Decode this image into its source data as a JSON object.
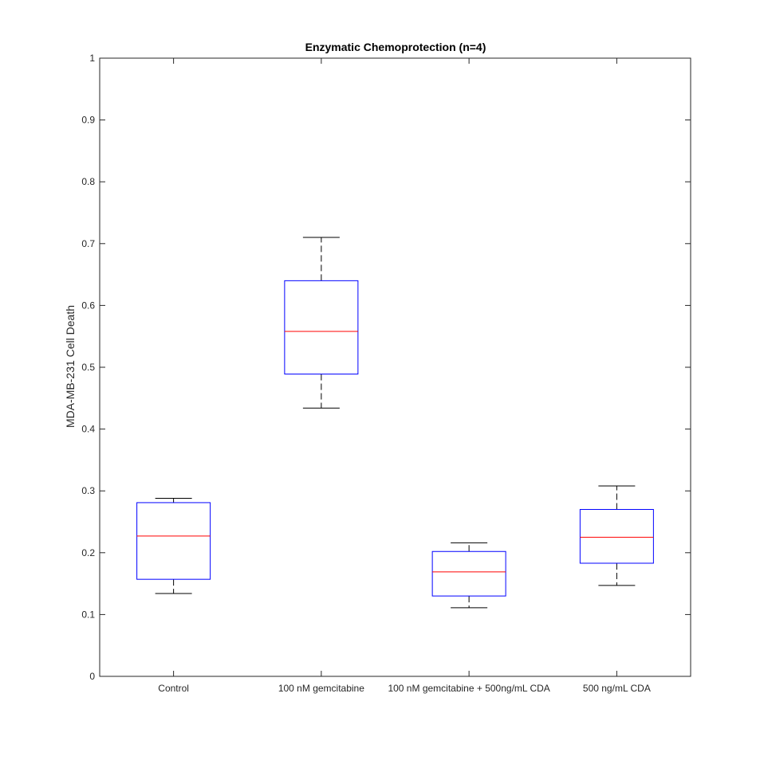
{
  "chart_data": {
    "type": "boxplot",
    "title": "Enzymatic Chemoprotection (n=4)",
    "xlabel": "",
    "ylabel": "MDA-MB-231 Cell Death",
    "ylim": [
      0,
      1
    ],
    "yticks": [
      "0",
      "0.1",
      "0.2",
      "0.3",
      "0.4",
      "0.5",
      "0.6",
      "0.7",
      "0.8",
      "0.9",
      "1"
    ],
    "grid": false,
    "categories": [
      "Control",
      "100 nM gemcitabine",
      "100 nM gemcitabine + 500ng/mL CDA",
      "500 ng/mL CDA"
    ],
    "boxes": [
      {
        "category": "Control",
        "whisker_low": 0.134,
        "q1": 0.157,
        "median": 0.227,
        "q3": 0.281,
        "whisker_high": 0.288
      },
      {
        "category": "100 nM gemcitabine",
        "whisker_low": 0.434,
        "q1": 0.489,
        "median": 0.558,
        "q3": 0.64,
        "whisker_high": 0.71
      },
      {
        "category": "100 nM gemcitabine + 500ng/mL CDA",
        "whisker_low": 0.111,
        "q1": 0.13,
        "median": 0.169,
        "q3": 0.202,
        "whisker_high": 0.216
      },
      {
        "category": "500 ng/mL CDA",
        "whisker_low": 0.147,
        "q1": 0.183,
        "median": 0.225,
        "q3": 0.27,
        "whisker_high": 0.308
      }
    ],
    "colors": {
      "box": "#0000ff",
      "median": "#ff0000",
      "whisker": "#000000",
      "axes": "#262626"
    }
  }
}
